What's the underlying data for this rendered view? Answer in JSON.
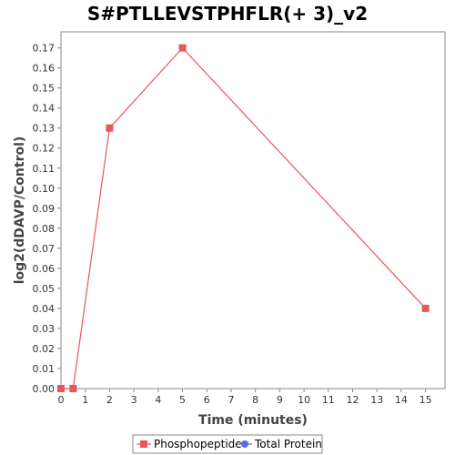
{
  "chart_data": {
    "type": "line",
    "title": "S#PTLLEVSTPHFLR(+ 3)_v2",
    "xlabel": "Time (minutes)",
    "ylabel": "log2(dDAVP/Control)",
    "xlim": [
      0,
      15.8
    ],
    "ylim": [
      0,
      0.178
    ],
    "xticks": [
      0,
      1,
      2,
      3,
      4,
      5,
      6,
      7,
      8,
      9,
      10,
      11,
      12,
      13,
      14,
      15
    ],
    "yticks": [
      0.0,
      0.01,
      0.02,
      0.03,
      0.04,
      0.05,
      0.06,
      0.07,
      0.08,
      0.09,
      0.1,
      0.11,
      0.12,
      0.13,
      0.14,
      0.15,
      0.16,
      0.17
    ],
    "grid": false,
    "legend_position": "bottom",
    "series": [
      {
        "name": "Phosphopeptide",
        "color": "#e8555a",
        "marker": "square",
        "x": [
          0,
          0.5,
          2,
          5,
          15
        ],
        "y": [
          0.0,
          0.0,
          0.13,
          0.17,
          0.04
        ]
      },
      {
        "name": "Total Protein",
        "color": "#5b6be8",
        "marker": "circle",
        "x": [],
        "y": []
      }
    ]
  }
}
